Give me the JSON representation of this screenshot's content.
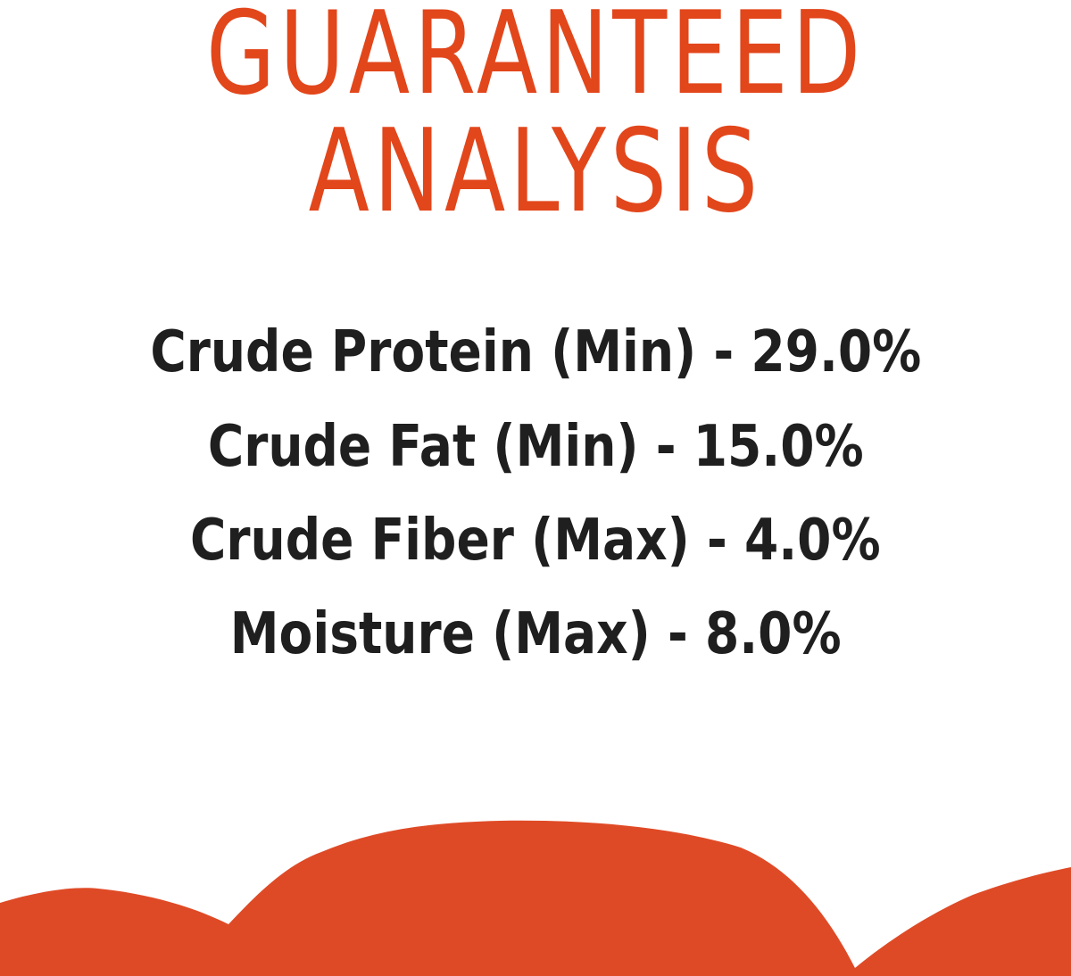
{
  "title": {
    "line1": "GUARANTEED",
    "line2": "ANALYSIS"
  },
  "analysis": [
    "Crude Protein (Min) - 29.0%",
    "Crude Fat (Min) - 15.0%",
    "Crude Fiber (Max) - 4.0%",
    "Moisture (Max) - 8.0%"
  ],
  "colors": {
    "title": "#e2461b",
    "text": "#1f1f1f",
    "shape": "#df4a26"
  }
}
